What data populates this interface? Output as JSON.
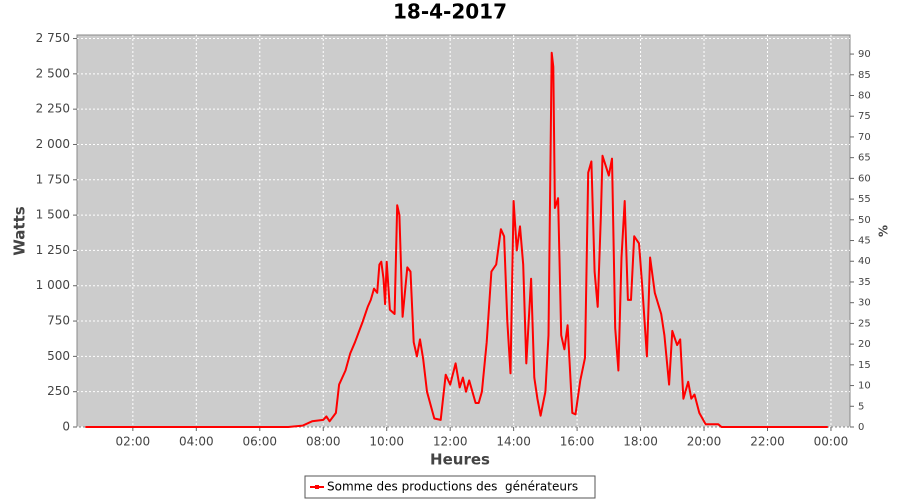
{
  "chart_data": {
    "type": "line",
    "title": "18-4-2017",
    "x_label": "Heures",
    "y_label": "Watts",
    "y2_label": "%",
    "x": [
      0.5,
      6.9,
      7.35,
      7.65,
      8.0,
      8.1,
      8.2,
      8.4,
      8.5,
      8.7,
      8.85,
      9.0,
      9.25,
      9.4,
      9.5,
      9.6,
      9.7,
      9.77,
      9.83,
      9.9,
      9.95,
      10.0,
      10.1,
      10.25,
      10.33,
      10.4,
      10.5,
      10.65,
      10.75,
      10.85,
      10.95,
      11.05,
      11.15,
      11.27,
      11.5,
      11.7,
      11.86,
      12.0,
      12.17,
      12.3,
      12.4,
      12.5,
      12.6,
      12.8,
      12.9,
      13.0,
      13.15,
      13.3,
      13.45,
      13.6,
      13.7,
      13.8,
      13.9,
      14.0,
      14.1,
      14.2,
      14.3,
      14.4,
      14.55,
      14.65,
      14.75,
      14.85,
      15.0,
      15.1,
      15.2,
      15.25,
      15.3,
      15.4,
      15.5,
      15.6,
      15.7,
      15.85,
      15.95,
      16.1,
      16.25,
      16.35,
      16.45,
      16.55,
      16.65,
      16.75,
      16.8,
      16.9,
      17.0,
      17.1,
      17.2,
      17.3,
      17.4,
      17.5,
      17.6,
      17.7,
      17.8,
      17.95,
      18.05,
      18.2,
      18.3,
      18.45,
      18.65,
      18.75,
      18.9,
      19.0,
      19.15,
      19.25,
      19.35,
      19.5,
      19.6,
      19.7,
      19.85,
      20.05,
      20.45,
      20.55,
      23.9
    ],
    "series": [
      {
        "name": "Somme des productions des  générateurs",
        "color": "#ff0000",
        "values": [
          0,
          0,
          10,
          40,
          50,
          75,
          40,
          100,
          300,
          400,
          520,
          600,
          750,
          850,
          900,
          980,
          950,
          1150,
          1170,
          1050,
          870,
          1170,
          830,
          800,
          1570,
          1500,
          780,
          1130,
          1100,
          600,
          500,
          620,
          480,
          250,
          60,
          50,
          370,
          300,
          450,
          280,
          350,
          250,
          330,
          170,
          170,
          250,
          600,
          1100,
          1150,
          1400,
          1350,
          750,
          380,
          1600,
          1250,
          1420,
          1150,
          450,
          1050,
          350,
          200,
          80,
          250,
          650,
          2650,
          2550,
          1550,
          1620,
          650,
          550,
          720,
          100,
          90,
          330,
          490,
          1800,
          1880,
          1100,
          850,
          1500,
          1920,
          1850,
          1780,
          1900,
          700,
          400,
          1200,
          1600,
          900,
          900,
          1350,
          1300,
          1000,
          500,
          1200,
          950,
          800,
          650,
          300,
          680,
          580,
          620,
          200,
          320,
          200,
          230,
          100,
          20,
          20,
          0,
          0
        ]
      }
    ],
    "xlim": [
      0.24,
      24.6
    ],
    "xticks": [
      {
        "value": 2,
        "label": "02:00"
      },
      {
        "value": 4,
        "label": "04:00"
      },
      {
        "value": 6,
        "label": "06:00"
      },
      {
        "value": 8,
        "label": "08:00"
      },
      {
        "value": 10,
        "label": "10:00"
      },
      {
        "value": 12,
        "label": "12:00"
      },
      {
        "value": 14,
        "label": "14:00"
      },
      {
        "value": 16,
        "label": "16:00"
      },
      {
        "value": 18,
        "label": "18:00"
      },
      {
        "value": 20,
        "label": "20:00"
      },
      {
        "value": 22,
        "label": "22:00"
      },
      {
        "value": 24,
        "label": "00:00"
      }
    ],
    "ylim": [
      0,
      2775
    ],
    "yticks": [
      0,
      250,
      500,
      750,
      {
        "value": 1000,
        "label": "1 000"
      },
      {
        "value": 1250,
        "label": "1 250"
      },
      {
        "value": 1500,
        "label": "1 500"
      },
      {
        "value": 1750,
        "label": "1 750"
      },
      {
        "value": 2000,
        "label": "2 000"
      },
      {
        "value": 2250,
        "label": "2 250"
      },
      {
        "value": 2500,
        "label": "2 500"
      },
      {
        "value": 2750,
        "label": "2 750"
      }
    ],
    "y2lim": [
      0,
      94.6
    ],
    "y2ticks": [
      0,
      5,
      10,
      15,
      20,
      25,
      30,
      35,
      40,
      45,
      50,
      55,
      60,
      65,
      70,
      75,
      80,
      85,
      90
    ],
    "grid": true,
    "legend": "bottom"
  }
}
